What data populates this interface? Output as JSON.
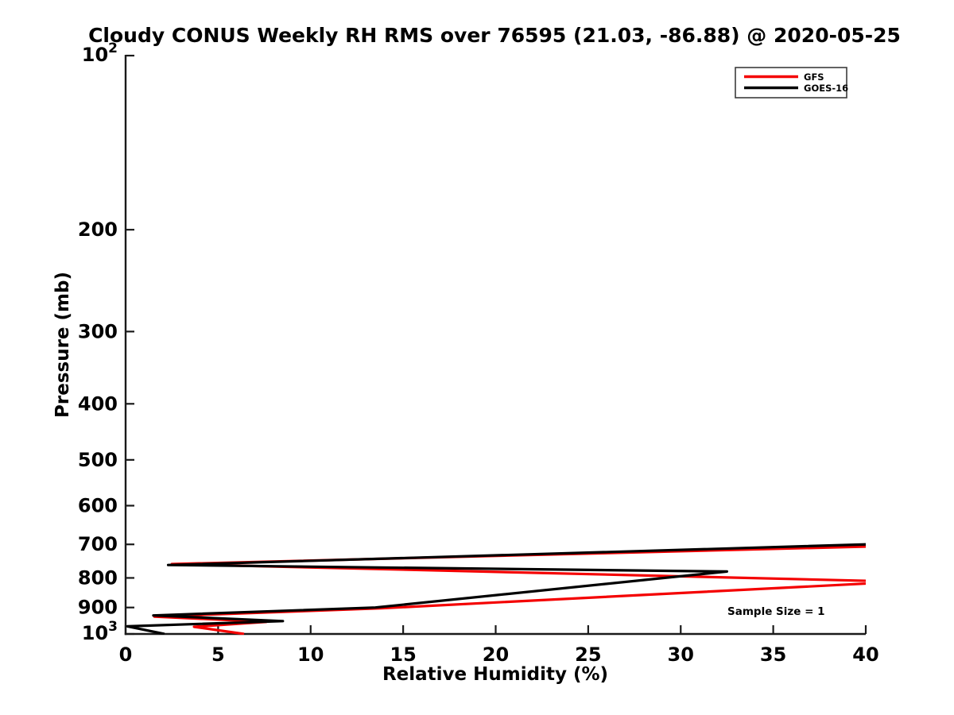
{
  "page": {
    "background": "#ffffff"
  },
  "chart_data": {
    "type": "line",
    "title": "Cloudy CONUS Weekly RH RMS over 76595 (21.03, -86.88) @ 2020-05-25",
    "xlabel": "Relative Humidity (%)",
    "ylabel": "Pressure (mb)",
    "x_axis": {
      "min": 0,
      "max": 40,
      "ticks": [
        0,
        5,
        10,
        15,
        20,
        25,
        30,
        35,
        40
      ]
    },
    "y_axis": {
      "scale": "log10",
      "direction": "increasing-downward",
      "min_mb": 100,
      "max_mb": 1000,
      "ticks": [
        {
          "value": 100,
          "label": "10^2"
        },
        {
          "value": 200,
          "label": "200"
        },
        {
          "value": 300,
          "label": "300"
        },
        {
          "value": 400,
          "label": "400"
        },
        {
          "value": 500,
          "label": "500"
        },
        {
          "value": 600,
          "label": "600"
        },
        {
          "value": 700,
          "label": "700"
        },
        {
          "value": 800,
          "label": "800"
        },
        {
          "value": 900,
          "label": "900"
        },
        {
          "value": 1000,
          "label": "10^3"
        }
      ]
    },
    "grid": false,
    "legend": {
      "position": "top-right",
      "border_color": "#3c3c3c",
      "background": "#ffffff"
    },
    "series": [
      {
        "name": "GFS",
        "color": "#f40000",
        "points_rh_vs_mb": [
          [
            47,
            697
          ],
          [
            2.5,
            757
          ],
          [
            42,
            812
          ],
          [
            13.8,
            903
          ],
          [
            1.55,
            933
          ],
          [
            7.6,
            953
          ],
          [
            3.7,
            972
          ],
          [
            6.4,
            1000
          ]
        ],
        "note": "values above 40% RH are clipped at the right axis limit"
      },
      {
        "name": "GOES-16",
        "color": "#000000",
        "points_rh_vs_mb": [
          [
            44,
            694
          ],
          [
            2.3,
            760
          ],
          [
            32.5,
            780
          ],
          [
            13.5,
            900
          ],
          [
            1.5,
            929
          ],
          [
            8.5,
            950
          ],
          [
            0.1,
            970
          ],
          [
            2.1,
            1000
          ]
        ],
        "note": "values above 40% RH are clipped at the right axis limit"
      }
    ],
    "annotations": [
      {
        "text": "Sample Size = 1",
        "x_rh": 32.5,
        "y_mb": 925
      }
    ],
    "styles": {
      "axis_color": "#1a1a1a",
      "text_color": "#000000",
      "line_width": 3.2
    }
  }
}
